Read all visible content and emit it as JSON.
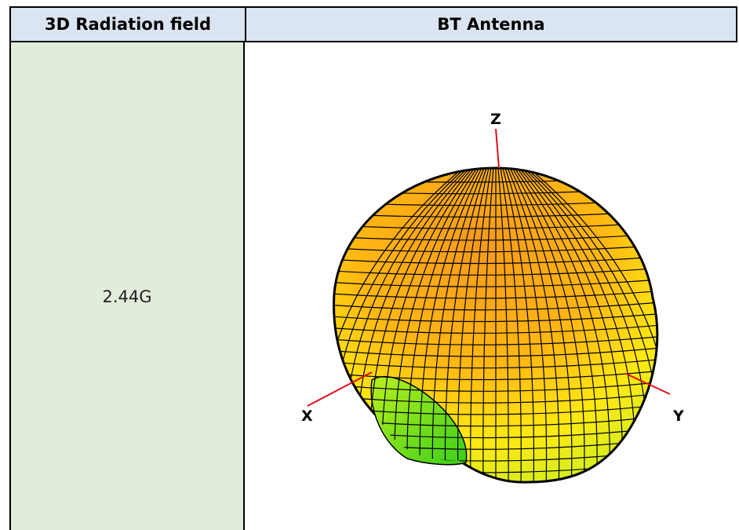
{
  "table": {
    "header_left": "3D Radiation field",
    "header_right": "BT Antenna",
    "row_label": "2.44G"
  },
  "plot": {
    "axis_labels": {
      "x": "X",
      "y": "Y",
      "z": "Z"
    },
    "colors": {
      "top": "#f5a21a",
      "middle": "#ffb810",
      "lower": "#ffee10",
      "bottom": "#7de01e",
      "mesh": "#000000",
      "axis": "#e0101a"
    }
  }
}
